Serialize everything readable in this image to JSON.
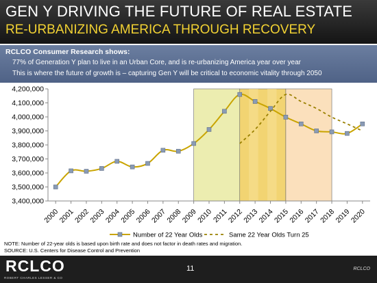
{
  "title": "GEN Y DRIVING THE FUTURE OF REAL ESTATE",
  "subtitle": "RE-URBANIZING AMERICA THROUGH RECOVERY",
  "bullets": {
    "heading": "RCLCO Consumer Research shows:",
    "line1": "77% of Generation Y plan to live in an Urban Core, and is re-urbanizing America year over year",
    "line2": "This is where the future of growth is – capturing Gen Y will be critical to economic vitality through 2050"
  },
  "chart_data": {
    "type": "line",
    "x": [
      "2000",
      "2001",
      "2002",
      "2003",
      "2004",
      "2005",
      "2006",
      "2007",
      "2008",
      "2009",
      "2010",
      "2011",
      "2012",
      "2013",
      "2014",
      "2015",
      "2016",
      "2017",
      "2018",
      "2019",
      "2020"
    ],
    "ylim": [
      3400000,
      4200000
    ],
    "yticks": [
      3400000,
      3500000,
      3600000,
      3700000,
      3800000,
      3900000,
      4000000,
      4100000,
      4200000
    ],
    "ytick_labels": [
      "3,400,000",
      "3,500,000",
      "3,600,000",
      "3,700,000",
      "3,800,000",
      "3,900,000",
      "4,000,000",
      "4,100,000",
      "4,200,000"
    ],
    "grid": "none",
    "legend_position": "bottom",
    "series": [
      {
        "name": "Number of 22 Year Olds",
        "color": "#8a9bb5",
        "values": [
          3500000,
          3615000,
          3612000,
          3632000,
          3683000,
          3643000,
          3668000,
          3762000,
          3755000,
          3810000,
          3910000,
          4040000,
          4160000,
          4110000,
          4060000,
          3998000,
          3950000,
          3900000,
          3893000,
          3882000,
          3950000
        ]
      },
      {
        "name": "Same 22 Year Olds Turn 25",
        "color": "#9a8000",
        "style": "dashed",
        "x": [
          "2012",
          "2013",
          "2014",
          "2015",
          "2016",
          "2017",
          "2018",
          "2019",
          "2020"
        ],
        "values": [
          3810000,
          3910000,
          4040000,
          4160000,
          4110000,
          4060000,
          3998000,
          3950000,
          3900000
        ]
      }
    ],
    "highlight_regions": [
      {
        "from": "2009",
        "to": "2012",
        "color": "#ecedb0"
      },
      {
        "from": "2012",
        "to": "2015",
        "color": "#f2d472"
      },
      {
        "from": "2015",
        "to": "2018",
        "color": "#fbe0bc"
      }
    ]
  },
  "note": {
    "line1": "NOTE: Number of 22-year olds is based upon birth rate and does not factor in death rates and migration.",
    "line2": "SOURCE:    U.S. Centers for Disease Control and Prevention"
  },
  "footer": {
    "logo": "RCLCO",
    "logo_sub": "ROBERT CHARLES LESSER & CO",
    "page": "11",
    "brand": "RCLCO"
  }
}
